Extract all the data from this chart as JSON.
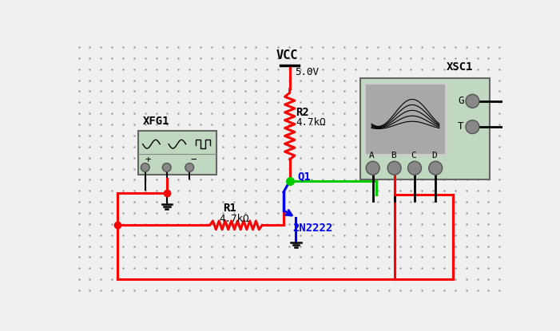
{
  "bg_color": "#f0f0f0",
  "dot_color": "#999999",
  "wire_red": "#ff0000",
  "wire_green": "#00cc00",
  "wire_blue": "#0000ee",
  "comp_bg": "#c0d8c0",
  "screen_bg": "#a8a8a8",
  "xfg1_label": "XFG1",
  "xsc1_label": "XSC1",
  "vcc_label": "VCC",
  "vcc_voltage": "5.0V",
  "r1_label": "R1",
  "r1_val": "4.7kΩ",
  "r2_label": "R2",
  "r2_val": "4.7kΩ",
  "q1_label": "Q1",
  "q1_name": "2N2222"
}
